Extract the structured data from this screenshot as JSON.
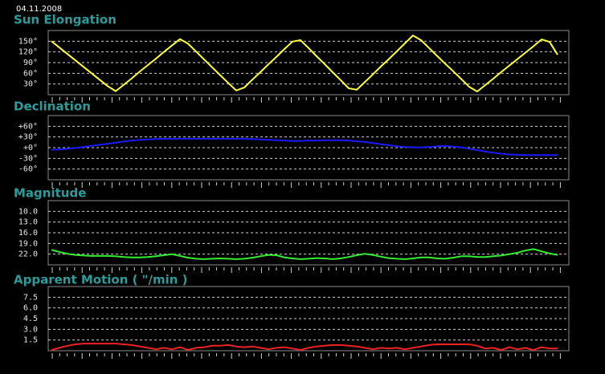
{
  "date": "04.11.2008",
  "chart_data": [
    {
      "type": "line",
      "title": "Sun Elongation",
      "color": "#ffff33",
      "values": [
        150,
        132,
        114,
        96,
        78,
        60,
        42,
        24,
        10,
        28,
        46,
        65,
        83,
        101,
        120,
        138,
        156,
        143,
        121,
        99,
        77,
        55,
        33,
        12,
        20,
        42,
        63,
        85,
        106,
        128,
        149,
        153,
        131,
        108,
        86,
        63,
        41,
        18,
        14,
        35,
        57,
        79,
        100,
        122,
        144,
        166,
        153,
        131,
        109,
        87,
        66,
        44,
        22,
        9,
        27,
        45,
        64,
        82,
        100,
        118,
        136,
        155,
        148,
        112
      ],
      "ylim": [
        0,
        180
      ],
      "yticks": [
        {
          "value": 150,
          "label": "150°"
        },
        {
          "value": 120,
          "label": "120°"
        },
        {
          "value": 90,
          "label": "90°"
        },
        {
          "value": 60,
          "label": "60°"
        },
        {
          "value": 30,
          "label": "30°"
        }
      ],
      "grid": true
    },
    {
      "type": "line",
      "title": "Declination",
      "color": "#1a1aff",
      "values": [
        -6,
        -5,
        -3,
        -1,
        2,
        5,
        8,
        11,
        14,
        17,
        20,
        22,
        23,
        24,
        25,
        25,
        25,
        25,
        25,
        25,
        25,
        25,
        25,
        25,
        25,
        24,
        23,
        22,
        21,
        20,
        19,
        19,
        20,
        20,
        21,
        21,
        21,
        20,
        18,
        16,
        13,
        10,
        7,
        4,
        2,
        1,
        1,
        2,
        4,
        5,
        3,
        1,
        -3,
        -7,
        -11,
        -14,
        -17,
        -19,
        -20,
        -21,
        -21,
        -21,
        -21,
        -21
      ],
      "ylim": [
        -90,
        90
      ],
      "yticks": [
        {
          "value": 60,
          "label": "+60°"
        },
        {
          "value": 30,
          "label": "+30°"
        },
        {
          "value": 0,
          "label": "+0°"
        },
        {
          "value": -30,
          "label": "-30°"
        },
        {
          "value": -60,
          "label": "-60°"
        }
      ],
      "grid": true
    },
    {
      "type": "line",
      "title": "Magnitude",
      "color": "#33ee33",
      "values": [
        20.8,
        21.4,
        21.9,
        22.2,
        22.4,
        22.5,
        22.5,
        22.5,
        22.6,
        22.8,
        22.9,
        22.9,
        22.8,
        22.6,
        22.3,
        22.0,
        22.5,
        23.0,
        23.3,
        23.4,
        23.3,
        23.2,
        23.3,
        23.4,
        23.3,
        23.0,
        22.6,
        22.2,
        22.3,
        22.9,
        23.2,
        23.4,
        23.3,
        23.1,
        23.2,
        23.4,
        23.2,
        22.8,
        22.3,
        21.9,
        22.2,
        22.7,
        23.1,
        23.3,
        23.4,
        23.2,
        22.9,
        22.9,
        23.2,
        23.3,
        23.0,
        22.6,
        22.6,
        22.8,
        22.8,
        22.6,
        22.4,
        22.0,
        21.6,
        21.0,
        20.6,
        21.2,
        21.8,
        22.2
      ],
      "ylim": [
        25,
        7
      ],
      "yticks": [
        {
          "value": 10,
          "label": "10.0"
        },
        {
          "value": 13,
          "label": "13.0"
        },
        {
          "value": 16,
          "label": "16.0"
        },
        {
          "value": 19,
          "label": "19.0"
        },
        {
          "value": 22,
          "label": "22.0"
        }
      ],
      "grid": true
    },
    {
      "type": "line",
      "title": "Apparent Motion ( \"/min )",
      "color": "#ee2222",
      "values": [
        0.1,
        0.4,
        0.7,
        0.9,
        1.0,
        1.0,
        1.0,
        1.0,
        1.0,
        0.9,
        0.8,
        0.6,
        0.4,
        0.2,
        0.4,
        0.2,
        0.5,
        0.1,
        0.4,
        0.5,
        0.7,
        0.7,
        0.8,
        0.6,
        0.5,
        0.6,
        0.4,
        0.2,
        0.4,
        0.5,
        0.3,
        0.1,
        0.4,
        0.6,
        0.7,
        0.8,
        0.8,
        0.7,
        0.6,
        0.4,
        0.2,
        0.4,
        0.3,
        0.4,
        0.2,
        0.4,
        0.6,
        0.8,
        0.9,
        0.9,
        0.9,
        0.9,
        0.9,
        0.7,
        0.3,
        0.4,
        0.1,
        0.5,
        0.2,
        0.4,
        0.1,
        0.5,
        0.3,
        0.3
      ],
      "ylim": [
        0,
        9
      ],
      "yticks": [
        7.5,
        {
          "value": 6,
          "label": "6.0"
        },
        4.5,
        {
          "value": 3,
          "label": "3.0"
        },
        1.5
      ],
      "grid": true
    }
  ]
}
